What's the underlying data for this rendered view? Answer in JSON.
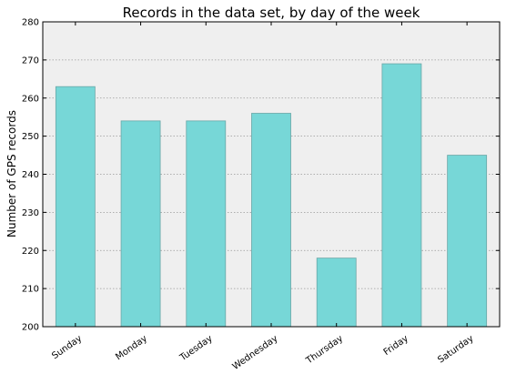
{
  "chart_data": {
    "type": "bar",
    "title": "Records in the data set, by day of the week",
    "xlabel": "",
    "ylabel": "Number of GPS records",
    "categories": [
      "Sunday",
      "Monday",
      "Tuesday",
      "Wednesday",
      "Thursday",
      "Friday",
      "Saturday"
    ],
    "values": [
      263,
      254,
      254,
      256,
      218,
      269,
      245
    ],
    "ylim": [
      200,
      280
    ],
    "yticks": [
      200,
      210,
      220,
      230,
      240,
      250,
      260,
      270,
      280
    ],
    "grid": "horizontal dotted",
    "legend": "none",
    "colors": {
      "bar_fill": "#77d7d7",
      "bar_edge": "#6aa7a7",
      "plot_bg": "#efefef",
      "grid": "#999999",
      "axis": "#000000"
    }
  }
}
